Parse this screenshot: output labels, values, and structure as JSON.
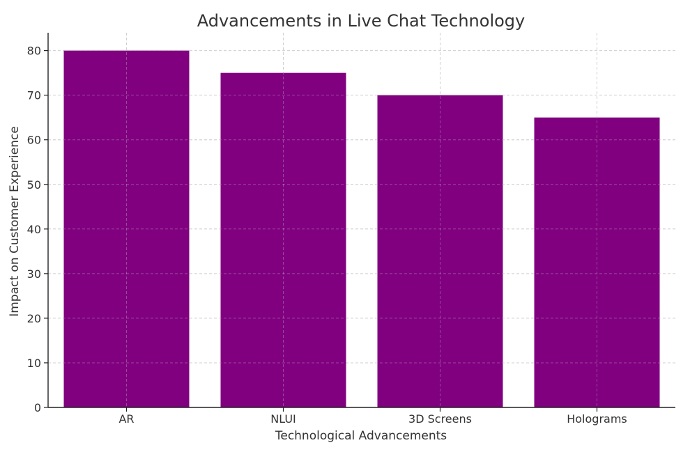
{
  "chart_data": {
    "type": "bar",
    "title": "Advancements in Live Chat Technology",
    "xlabel": "Technological Advancements",
    "ylabel": "Impact on Customer Experience",
    "categories": [
      "AR",
      "NLUI",
      "3D Screens",
      "Holograms"
    ],
    "values": [
      80,
      75,
      70,
      65
    ],
    "ylim": [
      0,
      84
    ],
    "yticks": [
      0,
      10,
      20,
      30,
      40,
      50,
      60,
      70,
      80
    ],
    "grid": true,
    "bar_color": "#800080"
  }
}
